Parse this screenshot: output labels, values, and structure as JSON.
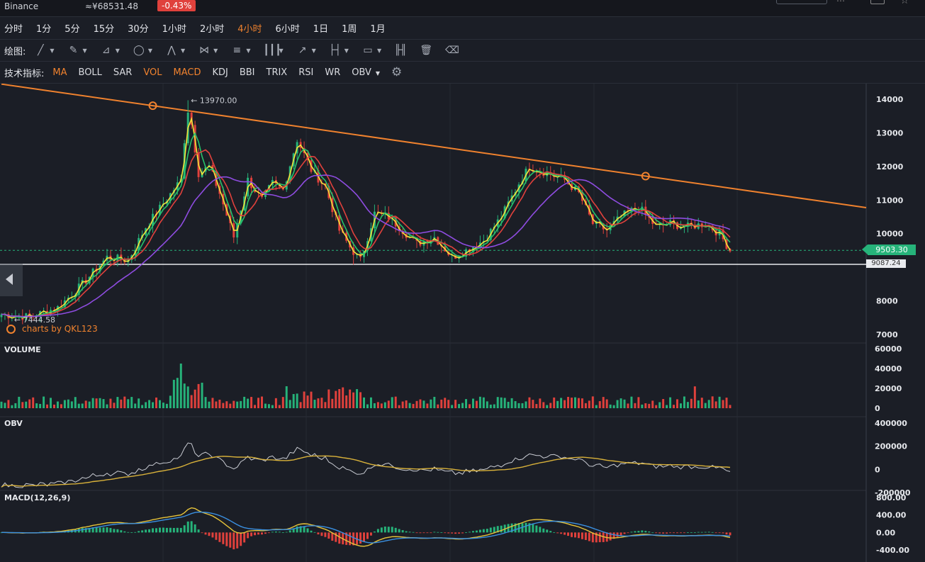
{
  "header": {
    "exchange": "Binance",
    "cny_price": "≈¥68531.48",
    "change_pct": "-0.43%"
  },
  "timeframes": [
    {
      "label": "分时",
      "active": false
    },
    {
      "label": "1分",
      "active": false
    },
    {
      "label": "5分",
      "active": false
    },
    {
      "label": "15分",
      "active": false
    },
    {
      "label": "30分",
      "active": false
    },
    {
      "label": "1小时",
      "active": false
    },
    {
      "label": "2小时",
      "active": false
    },
    {
      "label": "4小时",
      "active": true
    },
    {
      "label": "6小时",
      "active": false
    },
    {
      "label": "1日",
      "active": false
    },
    {
      "label": "1周",
      "active": false
    },
    {
      "label": "1月",
      "active": false
    }
  ],
  "drawing": {
    "label": "绘图:",
    "tools": [
      {
        "icon": "line-icon",
        "glyph": "╱",
        "dropdown": true
      },
      {
        "icon": "pen-icon",
        "glyph": "✎",
        "dropdown": true
      },
      {
        "icon": "fib-icon",
        "glyph": "⊿",
        "dropdown": true
      },
      {
        "icon": "circle-icon",
        "glyph": "◯",
        "dropdown": true
      },
      {
        "icon": "zigzag-icon",
        "glyph": "⋀",
        "dropdown": true
      },
      {
        "icon": "pattern-icon",
        "glyph": "⋈",
        "dropdown": true
      },
      {
        "icon": "lines-icon",
        "glyph": "≡",
        "dropdown": true
      },
      {
        "icon": "columns-icon",
        "glyph": "┃┃┃",
        "dropdown": true
      },
      {
        "icon": "arrow-icon",
        "glyph": "↗",
        "dropdown": true
      },
      {
        "icon": "range-icon",
        "glyph": "├┤",
        "dropdown": true
      },
      {
        "icon": "comment-icon",
        "glyph": "▭",
        "dropdown": true
      },
      {
        "icon": "candles-icon",
        "glyph": "╟╢",
        "dropdown": false
      },
      {
        "icon": "trash-icon",
        "glyph": "🗑",
        "dropdown": false
      },
      {
        "icon": "eraser-icon",
        "glyph": "⌫",
        "dropdown": false
      }
    ]
  },
  "indicators": {
    "label": "技术指标:",
    "items": [
      {
        "label": "MA",
        "on": true
      },
      {
        "label": "BOLL",
        "on": false
      },
      {
        "label": "SAR",
        "on": false
      },
      {
        "label": "VOL",
        "on": true
      },
      {
        "label": "MACD",
        "on": true
      },
      {
        "label": "KDJ",
        "on": false
      },
      {
        "label": "BBI",
        "on": false
      },
      {
        "label": "TRIX",
        "on": false
      },
      {
        "label": "RSI",
        "on": false
      },
      {
        "label": "WR",
        "on": false
      }
    ],
    "extra": "OBV",
    "settings_icon": "gear-icon"
  },
  "watermark": "charts by QKL123",
  "chart_data": {
    "type": "candlestick",
    "colors": {
      "up": "#26b37a",
      "down": "#e0413c",
      "ma1": "#f3e33a",
      "ma2": "#26c26b",
      "ma3": "#e0413c",
      "ma4": "#8e4ce0",
      "trend": "#f0822e"
    },
    "price_axis": {
      "ticks": [
        "14000",
        "13000",
        "12000",
        "11000",
        "10000",
        "8000",
        "7000"
      ],
      "range": [
        7000,
        14000
      ]
    },
    "anchors": [
      [
        0,
        7600
      ],
      [
        8,
        7520
      ],
      [
        16,
        7800
      ],
      [
        23,
        8500
      ],
      [
        30,
        9300
      ],
      [
        36,
        9200
      ],
      [
        41,
        10200
      ],
      [
        46,
        10900
      ],
      [
        51,
        11600
      ],
      [
        53,
        13970
      ],
      [
        56,
        11800
      ],
      [
        59,
        12000
      ],
      [
        62,
        11200
      ],
      [
        66,
        9900
      ],
      [
        70,
        11600
      ],
      [
        74,
        11000
      ],
      [
        77,
        11500
      ],
      [
        80,
        11300
      ],
      [
        84,
        12800
      ],
      [
        88,
        11900
      ],
      [
        92,
        11400
      ],
      [
        96,
        10100
      ],
      [
        99,
        9600
      ],
      [
        102,
        9200
      ],
      [
        106,
        10600
      ],
      [
        110,
        10500
      ],
      [
        114,
        10100
      ],
      [
        118,
        9700
      ],
      [
        123,
        9900
      ],
      [
        128,
        9300
      ],
      [
        132,
        9500
      ],
      [
        137,
        9800
      ],
      [
        142,
        10500
      ],
      [
        147,
        11500
      ],
      [
        150,
        12000
      ],
      [
        155,
        11800
      ],
      [
        160,
        11600
      ],
      [
        164,
        11200
      ],
      [
        168,
        10300
      ],
      [
        172,
        10100
      ],
      [
        176,
        10500
      ],
      [
        181,
        10800
      ],
      [
        186,
        10200
      ],
      [
        190,
        10300
      ],
      [
        195,
        10200
      ],
      [
        200,
        10300
      ],
      [
        204,
        10000
      ],
      [
        207,
        9500
      ]
    ],
    "candles_count": 208,
    "high_label": "← 13970.00",
    "low_label": "← 7444.58",
    "current_price": "9503.30",
    "support_price": "9087.24",
    "trendline": {
      "from": [
        0,
        14450
      ],
      "to": [
        244,
        10800
      ]
    },
    "volume": {
      "title": "VOLUME",
      "ticks": [
        "60000",
        "40000",
        "20000",
        "0"
      ],
      "range": [
        0,
        60000
      ]
    },
    "obv": {
      "title": "OBV",
      "ticks": [
        "400000",
        "200000",
        "0",
        "-200000"
      ],
      "range": [
        -200000,
        400000
      ]
    },
    "macd": {
      "title": "MACD(12,26,9)",
      "ticks": [
        "800.00",
        "400.00",
        "0.00",
        "-400.00"
      ],
      "range": [
        -400,
        800
      ]
    }
  }
}
